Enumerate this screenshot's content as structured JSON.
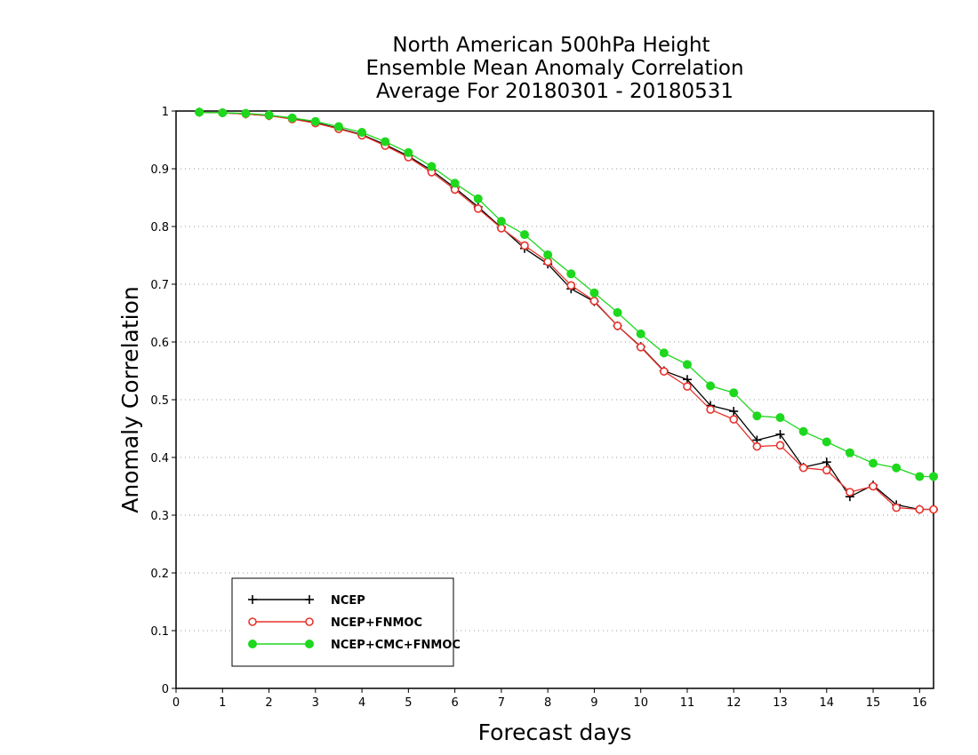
{
  "chart_data": {
    "type": "line",
    "title": [
      "North American 500hPa Height",
      "Ensemble Mean Anomaly Correlation",
      "Average For 20180301 - 20180531"
    ],
    "xlabel": "Forecast days",
    "ylabel": "Anomaly Correlation",
    "xlim": [
      0,
      16.3
    ],
    "ylim": [
      0,
      1
    ],
    "xticks": [
      0,
      1,
      2,
      3,
      4,
      5,
      6,
      7,
      8,
      9,
      10,
      11,
      12,
      13,
      14,
      15,
      16
    ],
    "yticks": [
      0,
      0.1,
      0.2,
      0.3,
      0.4,
      0.5,
      0.6,
      0.7,
      0.8,
      0.9,
      1
    ],
    "ytick_labels": [
      "0",
      "0.1",
      "0.2",
      "0.3",
      "0.4",
      "0.5",
      "0.6",
      "0.7",
      "0.8",
      "0.9",
      "1"
    ],
    "grid": "horizontal dotted",
    "legend_position": "bottom-left",
    "x": [
      0.5,
      1.0,
      1.5,
      2.0,
      2.5,
      3.0,
      3.5,
      4.0,
      4.5,
      5.0,
      5.5,
      6.0,
      6.5,
      7.0,
      7.5,
      8.0,
      8.5,
      9.0,
      9.5,
      10.0,
      10.5,
      11.0,
      11.5,
      12.0,
      12.5,
      13.0,
      13.5,
      14.0,
      14.5,
      15.0,
      15.5,
      16.0,
      16.3
    ],
    "series": [
      {
        "name": "NCEP",
        "color": "#000000",
        "marker": "plus",
        "values": [
          0.998,
          0.997,
          0.995,
          0.992,
          0.987,
          0.98,
          0.97,
          0.959,
          0.942,
          0.922,
          0.897,
          0.867,
          0.834,
          0.798,
          0.762,
          0.735,
          0.692,
          0.67,
          0.628,
          0.592,
          0.55,
          0.535,
          0.49,
          0.48,
          0.43,
          0.44,
          0.383,
          0.392,
          0.332,
          0.352,
          0.318,
          0.31,
          0.31
        ]
      },
      {
        "name": "NCEP+FNMOC",
        "color": "#e8322c",
        "marker": "open-circle",
        "values": [
          0.998,
          0.997,
          0.995,
          0.992,
          0.986,
          0.979,
          0.969,
          0.958,
          0.94,
          0.92,
          0.894,
          0.864,
          0.831,
          0.797,
          0.767,
          0.739,
          0.698,
          0.671,
          0.628,
          0.591,
          0.549,
          0.523,
          0.483,
          0.466,
          0.419,
          0.421,
          0.382,
          0.378,
          0.34,
          0.35,
          0.313,
          0.31,
          0.31
        ]
      },
      {
        "name": "NCEP+CMC+FNMOC",
        "color": "#1ed81e",
        "marker": "filled-circle",
        "values": [
          0.998,
          0.997,
          0.996,
          0.993,
          0.988,
          0.982,
          0.973,
          0.963,
          0.947,
          0.928,
          0.904,
          0.875,
          0.848,
          0.809,
          0.786,
          0.751,
          0.718,
          0.685,
          0.651,
          0.614,
          0.581,
          0.561,
          0.524,
          0.512,
          0.472,
          0.469,
          0.445,
          0.427,
          0.408,
          0.39,
          0.382,
          0.367,
          0.367
        ]
      }
    ]
  }
}
